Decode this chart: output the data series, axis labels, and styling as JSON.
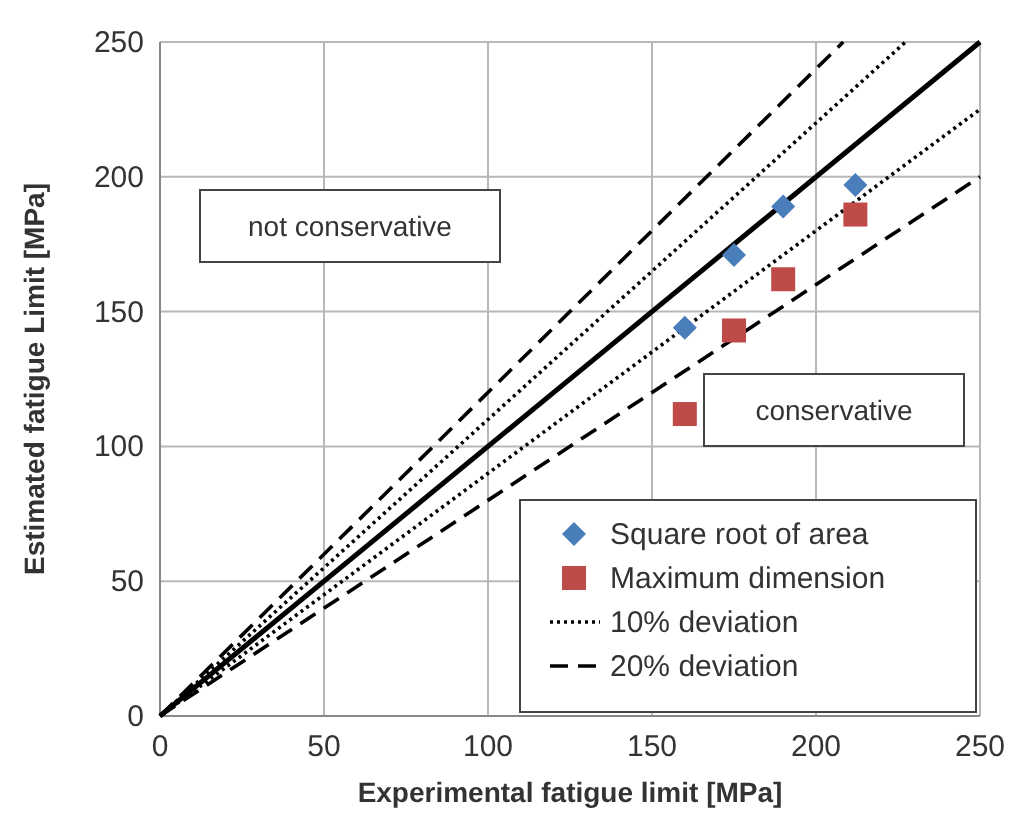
{
  "chart_data": {
    "type": "scatter",
    "xlabel": "Experimental fatigue limit [MPa]",
    "ylabel": "Estimated fatigue Limit [MPa]",
    "xlim": [
      0,
      250
    ],
    "ylim": [
      0,
      250
    ],
    "xticks": [
      0,
      50,
      100,
      150,
      200,
      250
    ],
    "yticks": [
      0,
      50,
      100,
      150,
      200,
      250
    ],
    "grid": true,
    "legend": "bottom right",
    "annotations": [
      "not conservative",
      "conservative"
    ],
    "series": [
      {
        "name": "Square root of area",
        "marker": "diamond",
        "color": "#4a7ebb",
        "x": [
          160,
          175,
          190,
          212
        ],
        "values": [
          144,
          171,
          189,
          197
        ]
      },
      {
        "name": "Maximum dimension",
        "marker": "square",
        "color": "#be4b48",
        "x": [
          160,
          175,
          190,
          212
        ],
        "values": [
          112,
          143,
          162,
          186
        ]
      },
      {
        "name": "10% deviation",
        "type": "line",
        "marker": "none",
        "line_style": "dotted",
        "color": "#000000",
        "x": [
          0,
          227.3
        ],
        "values": [
          0,
          250
        ]
      },
      {
        "type": "line",
        "marker": "none",
        "line_style": "dotted",
        "color": "#000000",
        "x": [
          0,
          250
        ],
        "values": [
          0,
          225
        ]
      },
      {
        "name": "20% deviation",
        "type": "line",
        "marker": "none",
        "line_style": "dashed",
        "color": "#000000",
        "x": [
          0,
          208.3
        ],
        "values": [
          0,
          250
        ]
      },
      {
        "type": "line",
        "marker": "none",
        "line_style": "dashed",
        "color": "#000000",
        "x": [
          0,
          250
        ],
        "values": [
          0,
          200
        ]
      },
      {
        "type": "line",
        "marker": "none",
        "line_style": "solid",
        "color": "#000000",
        "x": [
          0,
          250
        ],
        "values": [
          0,
          250
        ]
      }
    ]
  }
}
